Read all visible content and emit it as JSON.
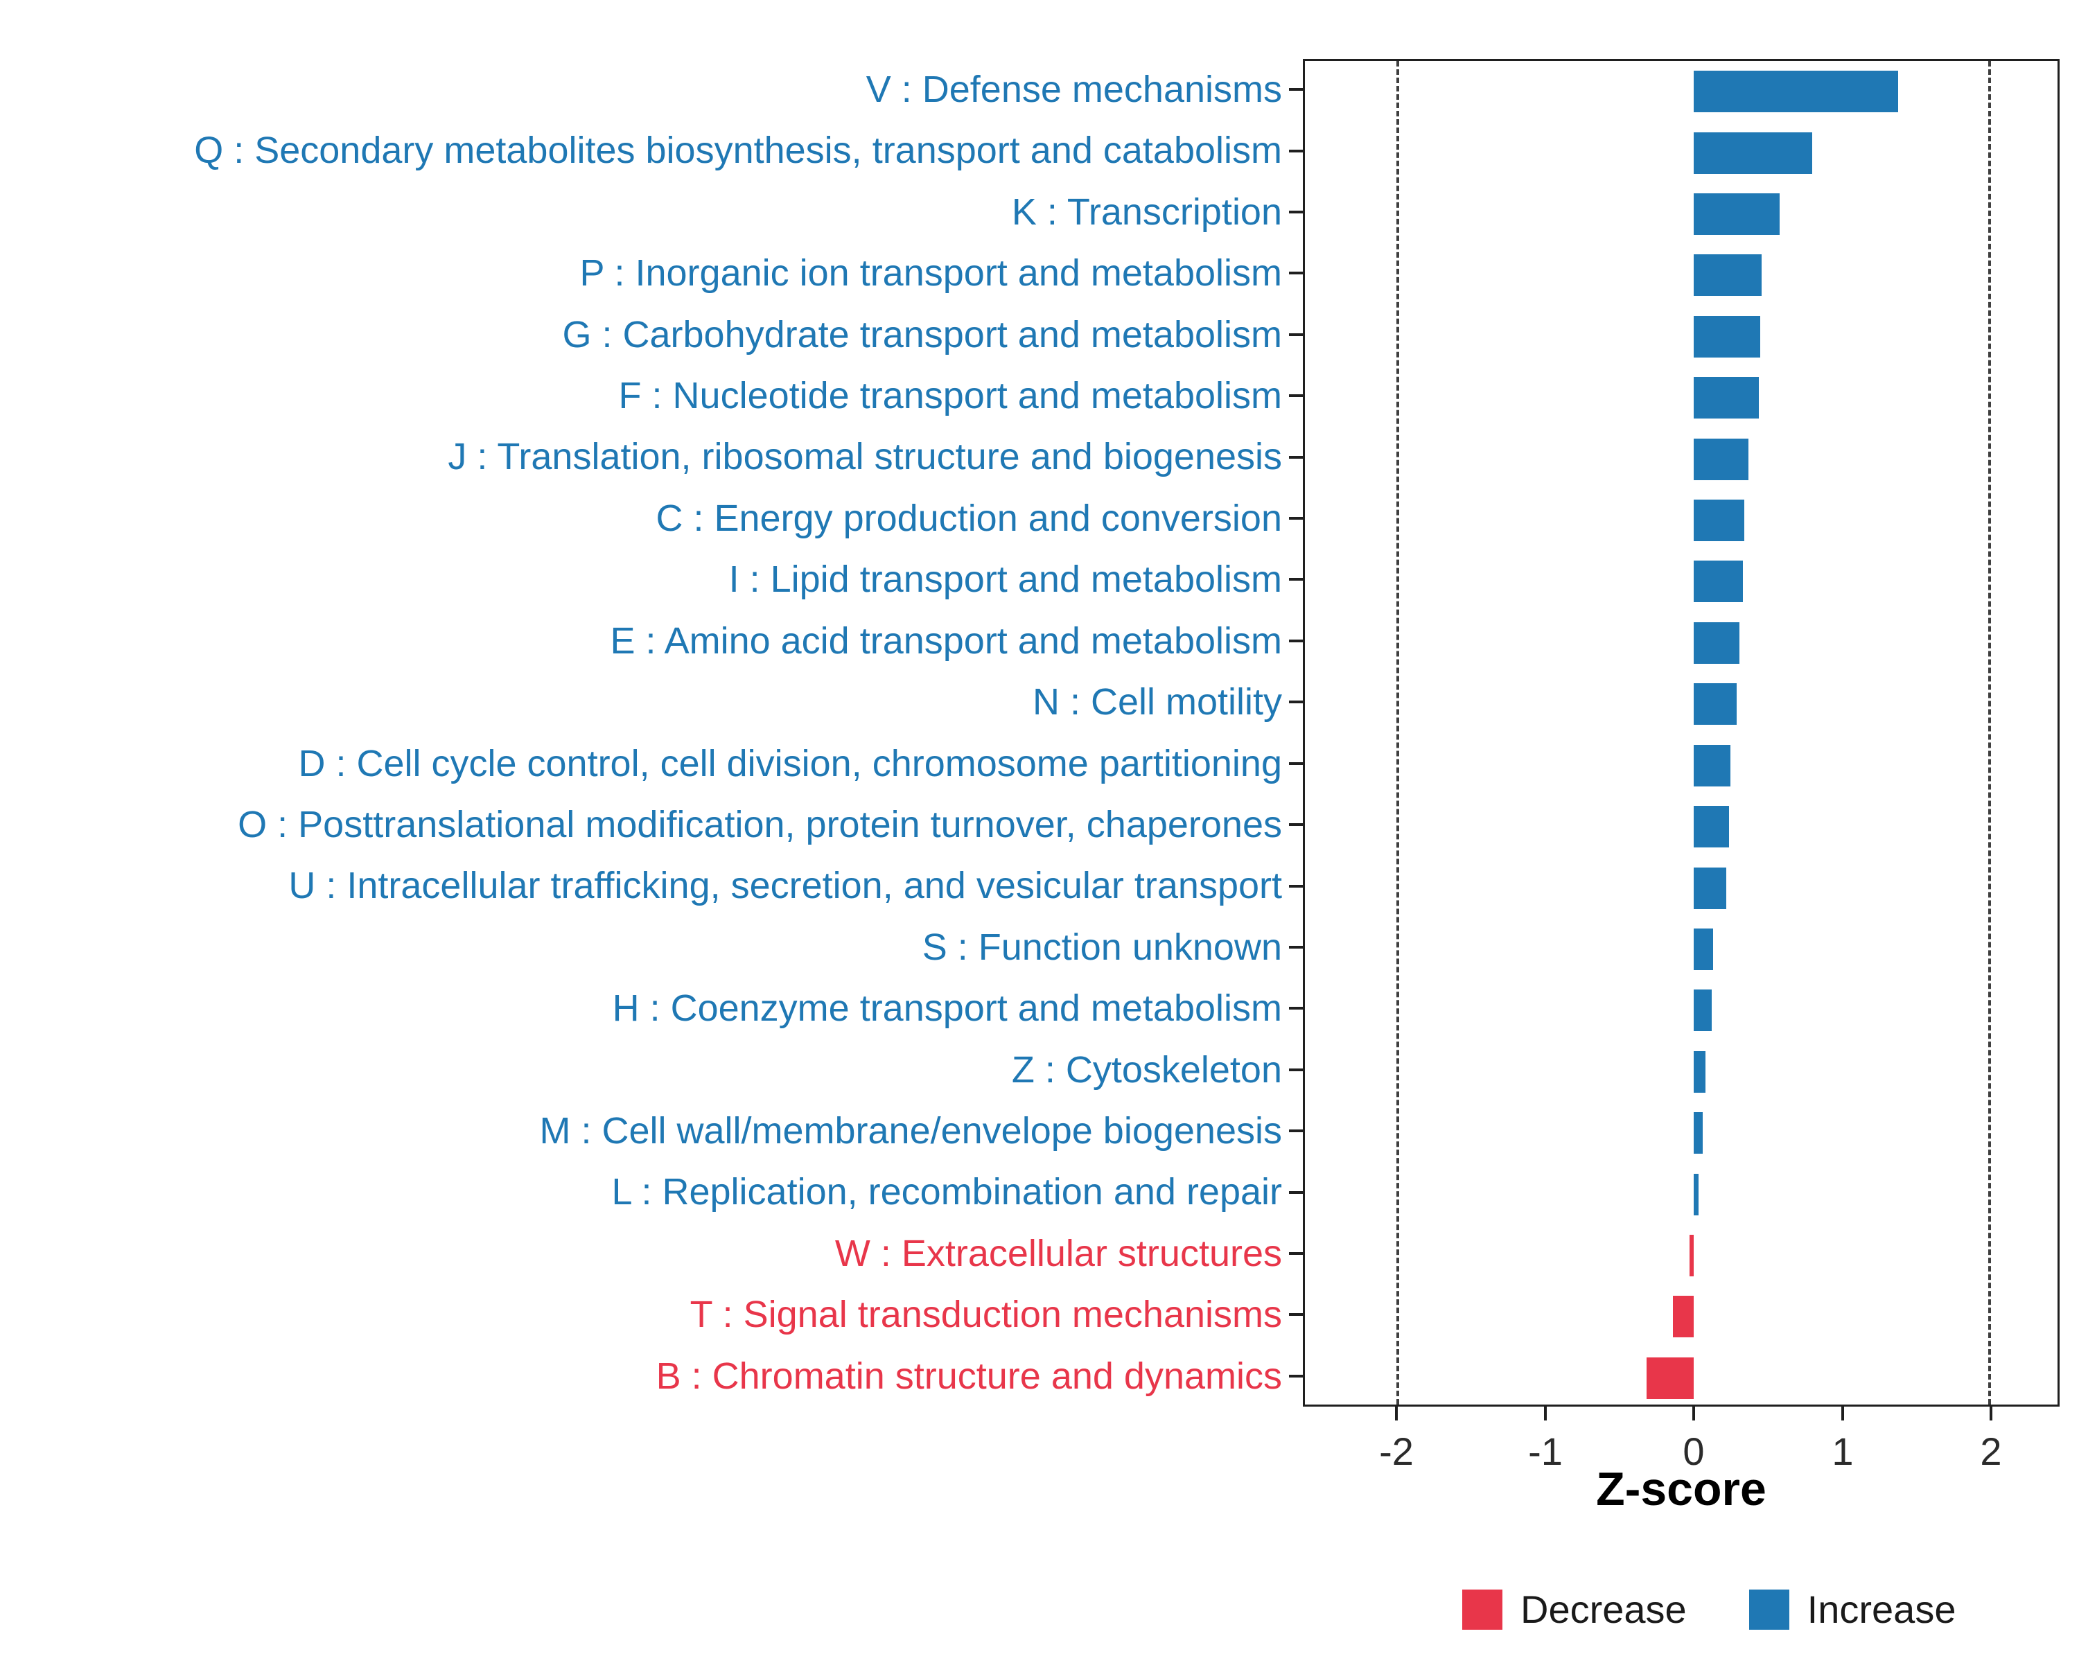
{
  "chart_data": {
    "type": "bar",
    "orientation": "horizontal",
    "title": "",
    "xlabel": "Z-score",
    "ylabel": "",
    "xlim": [
      -2.63,
      2.46
    ],
    "xticks": [
      -2,
      -1,
      0,
      1,
      2
    ],
    "xtick_labels": [
      "-2",
      "-1",
      "0",
      "1",
      "2"
    ],
    "dashed_lines_x": [
      -2,
      2
    ],
    "grid": false,
    "legend_position": "bottom-right",
    "categories": [
      "V : Defense mechanisms",
      "Q : Secondary metabolites biosynthesis, transport and catabolism",
      "K : Transcription",
      "P : Inorganic ion transport and metabolism",
      "G : Carbohydrate transport and metabolism",
      "F : Nucleotide transport and metabolism",
      "J : Translation, ribosomal structure and biogenesis",
      "C : Energy production and conversion",
      "I : Lipid transport and metabolism",
      "E : Amino acid transport and metabolism",
      "N : Cell motility",
      "D : Cell cycle control, cell division, chromosome partitioning",
      "O : Posttranslational modification, protein turnover, chaperones",
      "U : Intracellular trafficking, secretion, and vesicular transport",
      "S : Function unknown",
      "H : Coenzyme transport and metabolism",
      "Z : Cytoskeleton",
      "M : Cell wall/membrane/envelope biogenesis",
      "L : Replication, recombination and repair",
      "W : Extracellular structures",
      "T : Signal transduction mechanisms",
      "B : Chromatin structure and dynamics"
    ],
    "values": [
      1.38,
      0.8,
      0.58,
      0.46,
      0.45,
      0.44,
      0.37,
      0.34,
      0.33,
      0.31,
      0.29,
      0.25,
      0.24,
      0.22,
      0.13,
      0.12,
      0.08,
      0.06,
      0.03,
      -0.03,
      -0.14,
      -0.32
    ],
    "directions": [
      "increase",
      "increase",
      "increase",
      "increase",
      "increase",
      "increase",
      "increase",
      "increase",
      "increase",
      "increase",
      "increase",
      "increase",
      "increase",
      "increase",
      "increase",
      "increase",
      "increase",
      "increase",
      "increase",
      "decrease",
      "decrease",
      "decrease"
    ],
    "colors": {
      "increase": "#1F78B4",
      "decrease": "#E8364A"
    },
    "legend": [
      {
        "label": "Decrease",
        "key": "decrease",
        "color": "#E8364A"
      },
      {
        "label": "Increase",
        "key": "increase",
        "color": "#1F78B4"
      }
    ]
  }
}
